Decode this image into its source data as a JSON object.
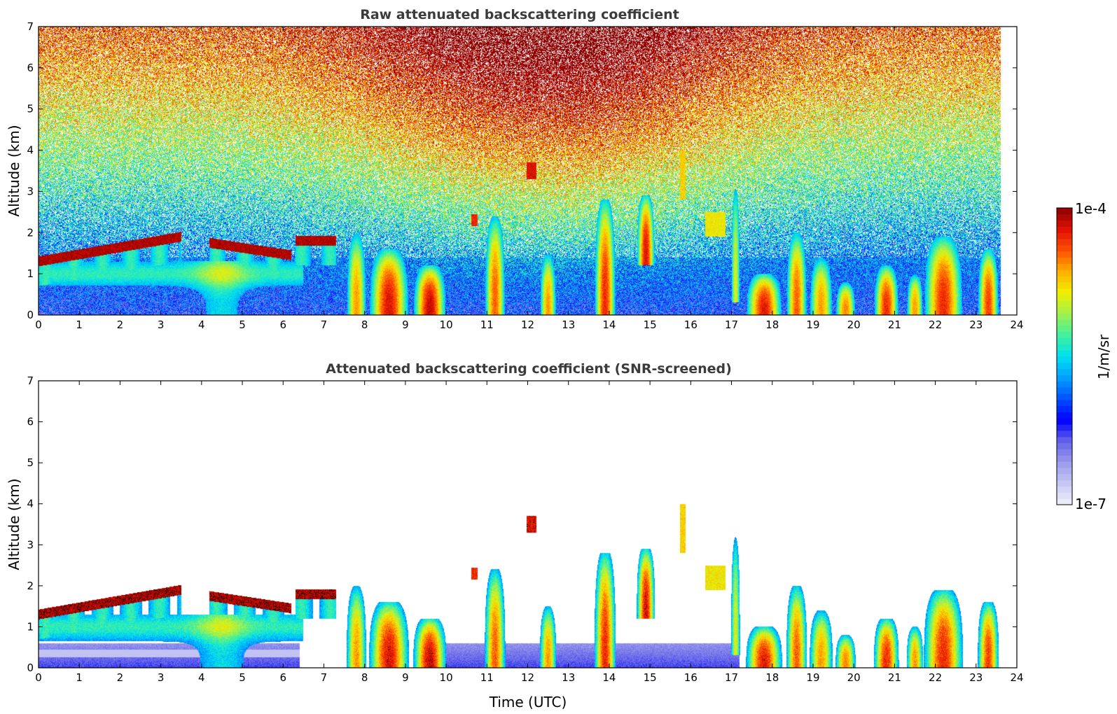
{
  "chart_data": [
    {
      "type": "heatmap",
      "title": "Raw attenuated backscattering coefficient",
      "ylabel": "Altitude (km)",
      "xlabel": "",
      "xlim": [
        0,
        24
      ],
      "ylim": [
        0,
        7
      ],
      "xticks": [
        "0",
        "1",
        "2",
        "3",
        "4",
        "5",
        "6",
        "7",
        "8",
        "9",
        "10",
        "11",
        "12",
        "13",
        "14",
        "15",
        "16",
        "17",
        "18",
        "19",
        "20",
        "21",
        "22",
        "23",
        "24"
      ],
      "yticks": [
        "0",
        "1",
        "2",
        "3",
        "4",
        "5",
        "6",
        "7"
      ],
      "data_end_time": 23.6,
      "mode": "raw"
    },
    {
      "type": "heatmap",
      "title": "Attenuated backscattering coefficient (SNR-screened)",
      "ylabel": "Altitude (km)",
      "xlabel": "Time (UTC)",
      "xlim": [
        0,
        24
      ],
      "ylim": [
        0,
        7
      ],
      "xticks": [
        "0",
        "1",
        "2",
        "3",
        "4",
        "5",
        "6",
        "7",
        "8",
        "9",
        "10",
        "11",
        "12",
        "13",
        "14",
        "15",
        "16",
        "17",
        "18",
        "19",
        "20",
        "21",
        "22",
        "23",
        "24"
      ],
      "yticks": [
        "0",
        "1",
        "2",
        "3",
        "4",
        "5",
        "6",
        "7"
      ],
      "data_end_time": 23.6,
      "mode": "screened"
    }
  ],
  "colorbar": {
    "max_label": "1e-4",
    "min_label": "1e-7",
    "unit_label": "1/m/sr",
    "colors": [
      "#f0f0ff",
      "#c8c8f4",
      "#9a9aec",
      "#6464ea",
      "#0000ff",
      "#0050ff",
      "#00a0ff",
      "#00e0f0",
      "#40f0a0",
      "#a0f050",
      "#f0f000",
      "#ffb000",
      "#ff5000",
      "#e01000",
      "#8b0000"
    ]
  }
}
